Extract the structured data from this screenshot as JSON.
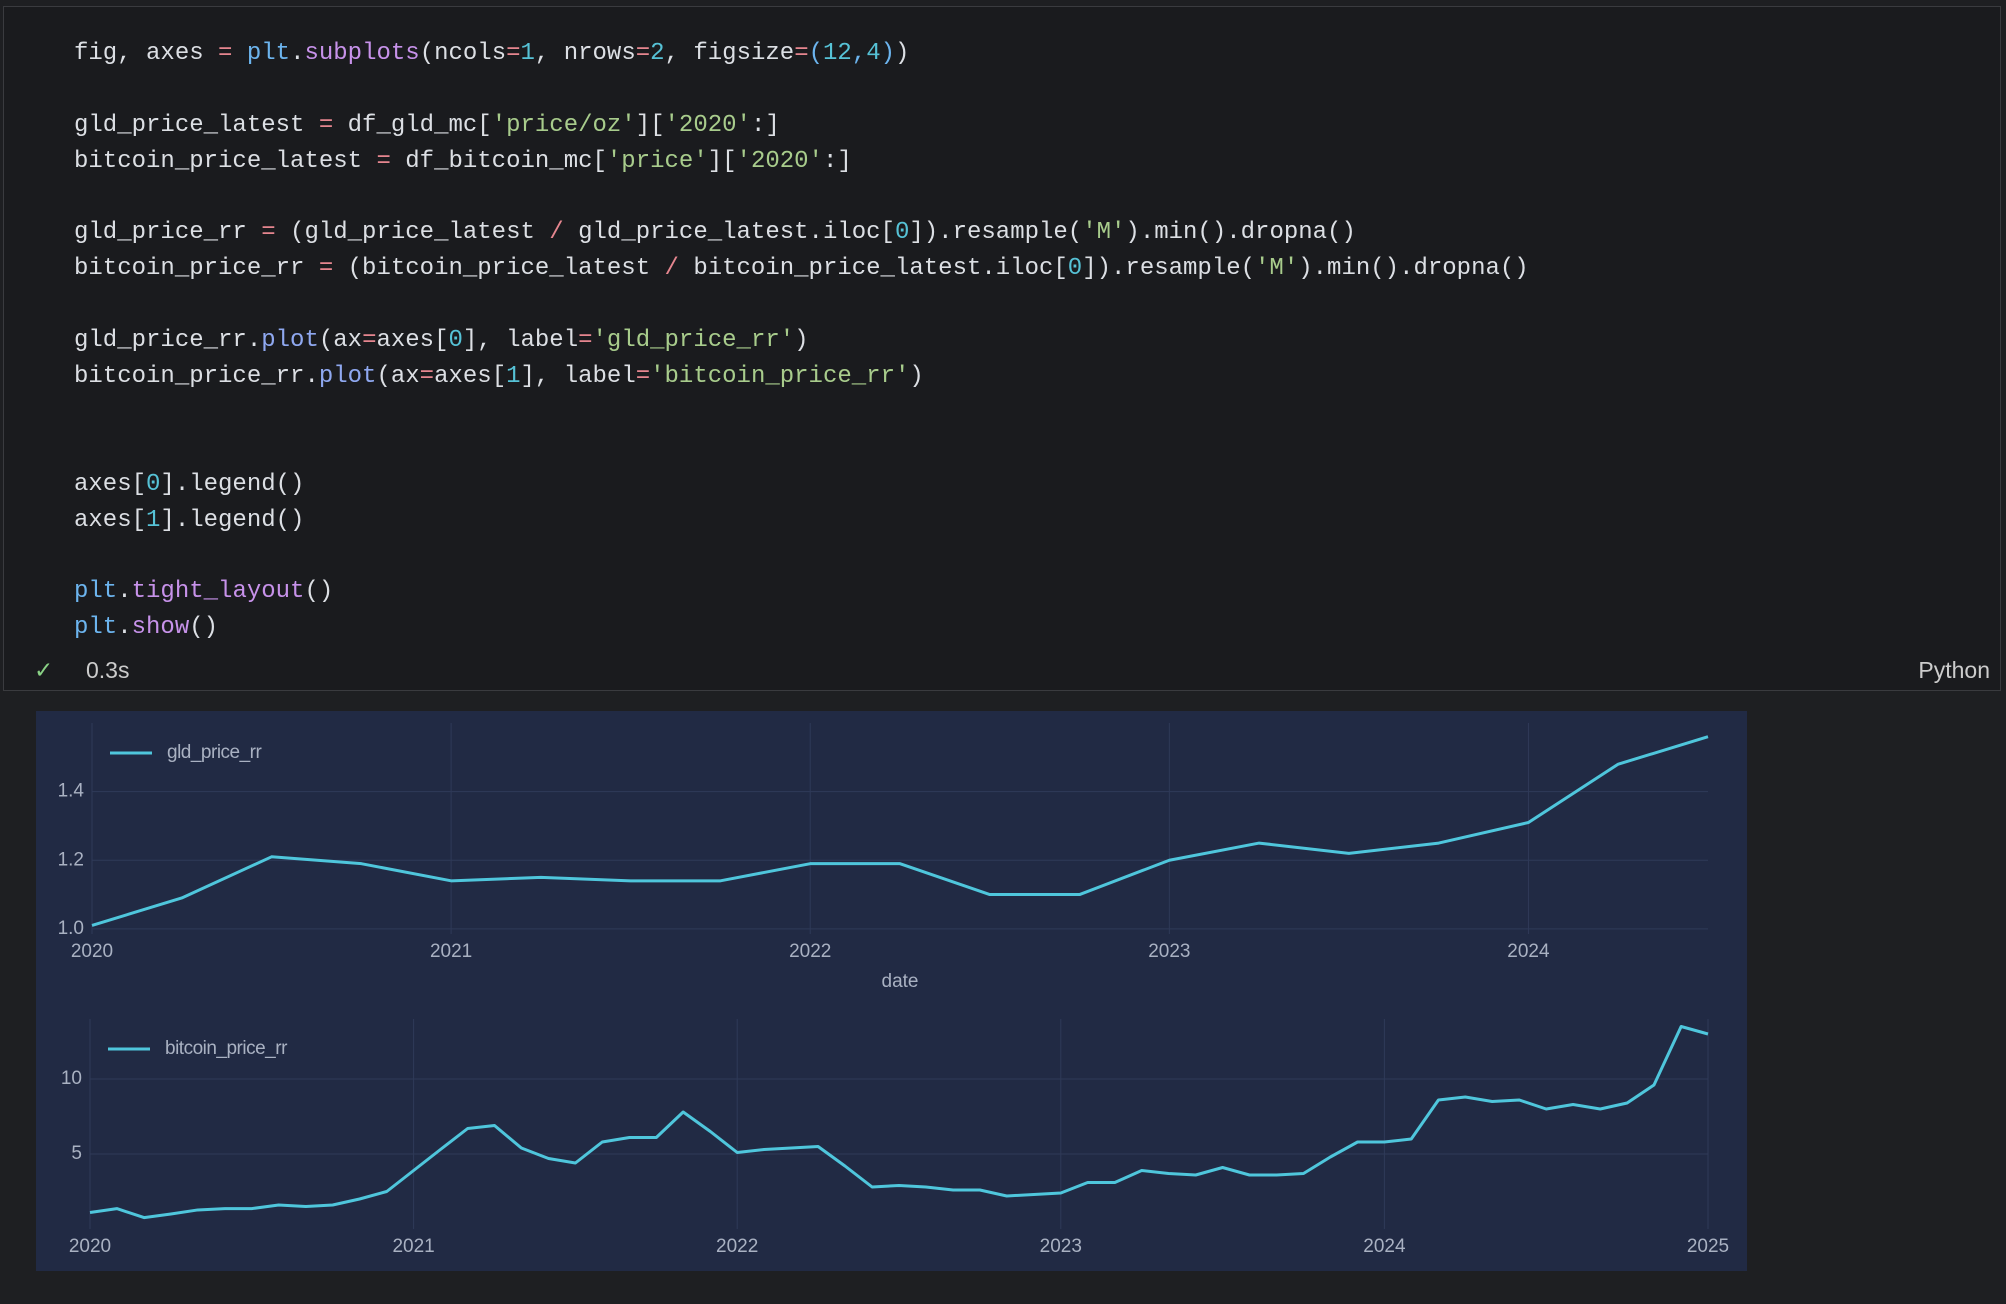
{
  "code": {
    "lines": [
      [
        {
          "text": "fig, axes ",
          "color": "#dcdfe4"
        },
        {
          "text": "=",
          "color": "#e5868f"
        },
        {
          "text": " ",
          "color": "#dcdfe4"
        },
        {
          "text": "plt",
          "color": "#6cb4ee"
        },
        {
          "text": ".",
          "color": "#dcdfe4"
        },
        {
          "text": "subplots",
          "color": "#c792ea"
        },
        {
          "text": "(ncols",
          "color": "#dcdfe4"
        },
        {
          "text": "=",
          "color": "#e5868f"
        },
        {
          "text": "1",
          "color": "#56c2d6"
        },
        {
          "text": ", nrows",
          "color": "#dcdfe4"
        },
        {
          "text": "=",
          "color": "#e5868f"
        },
        {
          "text": "2",
          "color": "#56c2d6"
        },
        {
          "text": ", figsize",
          "color": "#dcdfe4"
        },
        {
          "text": "=",
          "color": "#e5868f"
        },
        {
          "text": "(",
          "color": "#6cb4ee"
        },
        {
          "text": "12",
          "color": "#56c2d6"
        },
        {
          "text": ",",
          "color": "#6cb4ee"
        },
        {
          "text": "4",
          "color": "#56c2d6"
        },
        {
          "text": ")",
          "color": "#6cb4ee"
        },
        {
          "text": ")",
          "color": "#dcdfe4"
        }
      ],
      [],
      [
        {
          "text": "gld_price_latest ",
          "color": "#dcdfe4"
        },
        {
          "text": "=",
          "color": "#e5868f"
        },
        {
          "text": " df_gld_mc[",
          "color": "#dcdfe4"
        },
        {
          "text": "'price/oz'",
          "color": "#a8cc8c"
        },
        {
          "text": "][",
          "color": "#dcdfe4"
        },
        {
          "text": "'2020'",
          "color": "#a8cc8c"
        },
        {
          "text": ":]",
          "color": "#dcdfe4"
        }
      ],
      [
        {
          "text": "bitcoin_price_latest ",
          "color": "#dcdfe4"
        },
        {
          "text": "=",
          "color": "#e5868f"
        },
        {
          "text": " df_bitcoin_mc[",
          "color": "#dcdfe4"
        },
        {
          "text": "'price'",
          "color": "#a8cc8c"
        },
        {
          "text": "][",
          "color": "#dcdfe4"
        },
        {
          "text": "'2020'",
          "color": "#a8cc8c"
        },
        {
          "text": ":]",
          "color": "#dcdfe4"
        }
      ],
      [],
      [
        {
          "text": "gld_price_rr ",
          "color": "#dcdfe4"
        },
        {
          "text": "=",
          "color": "#e5868f"
        },
        {
          "text": " (gld_price_latest ",
          "color": "#dcdfe4"
        },
        {
          "text": "/",
          "color": "#e5868f"
        },
        {
          "text": " gld_price_latest.iloc[",
          "color": "#dcdfe4"
        },
        {
          "text": "0",
          "color": "#56c2d6"
        },
        {
          "text": "]).resample(",
          "color": "#dcdfe4"
        },
        {
          "text": "'M'",
          "color": "#a8cc8c"
        },
        {
          "text": ").min().dropna()",
          "color": "#dcdfe4"
        }
      ],
      [
        {
          "text": "bitcoin_price_rr ",
          "color": "#dcdfe4"
        },
        {
          "text": "=",
          "color": "#e5868f"
        },
        {
          "text": " (bitcoin_price_latest ",
          "color": "#dcdfe4"
        },
        {
          "text": "/",
          "color": "#e5868f"
        },
        {
          "text": " bitcoin_price_latest.iloc[",
          "color": "#dcdfe4"
        },
        {
          "text": "0",
          "color": "#56c2d6"
        },
        {
          "text": "]).resample(",
          "color": "#dcdfe4"
        },
        {
          "text": "'M'",
          "color": "#a8cc8c"
        },
        {
          "text": ").min().dropna()",
          "color": "#dcdfe4"
        }
      ],
      [],
      [
        {
          "text": "gld_price_rr.",
          "color": "#dcdfe4"
        },
        {
          "text": "plot",
          "color": "#8fa8f0"
        },
        {
          "text": "(ax",
          "color": "#dcdfe4"
        },
        {
          "text": "=",
          "color": "#e5868f"
        },
        {
          "text": "axes[",
          "color": "#dcdfe4"
        },
        {
          "text": "0",
          "color": "#56c2d6"
        },
        {
          "text": "], label",
          "color": "#dcdfe4"
        },
        {
          "text": "=",
          "color": "#e5868f"
        },
        {
          "text": "'gld_price_rr'",
          "color": "#a8cc8c"
        },
        {
          "text": ")",
          "color": "#dcdfe4"
        }
      ],
      [
        {
          "text": "bitcoin_price_rr.",
          "color": "#dcdfe4"
        },
        {
          "text": "plot",
          "color": "#8fa8f0"
        },
        {
          "text": "(ax",
          "color": "#dcdfe4"
        },
        {
          "text": "=",
          "color": "#e5868f"
        },
        {
          "text": "axes[",
          "color": "#dcdfe4"
        },
        {
          "text": "1",
          "color": "#56c2d6"
        },
        {
          "text": "], label",
          "color": "#dcdfe4"
        },
        {
          "text": "=",
          "color": "#e5868f"
        },
        {
          "text": "'bitcoin_price_rr'",
          "color": "#a8cc8c"
        },
        {
          "text": ")",
          "color": "#dcdfe4"
        }
      ],
      [],
      [],
      [
        {
          "text": "axes[",
          "color": "#dcdfe4"
        },
        {
          "text": "0",
          "color": "#56c2d6"
        },
        {
          "text": "].legend()",
          "color": "#dcdfe4"
        }
      ],
      [
        {
          "text": "axes[",
          "color": "#dcdfe4"
        },
        {
          "text": "1",
          "color": "#56c2d6"
        },
        {
          "text": "].legend()",
          "color": "#dcdfe4"
        }
      ],
      [],
      [
        {
          "text": "plt",
          "color": "#6cb4ee"
        },
        {
          "text": ".",
          "color": "#dcdfe4"
        },
        {
          "text": "tight_layout",
          "color": "#c792ea"
        },
        {
          "text": "()",
          "color": "#dcdfe4"
        }
      ],
      [
        {
          "text": "plt",
          "color": "#6cb4ee"
        },
        {
          "text": ".",
          "color": "#dcdfe4"
        },
        {
          "text": "show",
          "color": "#c792ea"
        },
        {
          "text": "()",
          "color": "#dcdfe4"
        }
      ]
    ]
  },
  "status": {
    "check": "✓",
    "time": "0.3s",
    "language": "Python"
  },
  "chart_data": [
    {
      "type": "line",
      "xlabel": "date",
      "legend": "upper left",
      "grid": true,
      "x": [
        2020,
        2020.25,
        2020.5,
        2020.75,
        2021,
        2021.25,
        2021.5,
        2021.75,
        2022,
        2022.25,
        2022.5,
        2022.75,
        2023,
        2023.25,
        2023.5,
        2023.75,
        2024,
        2024.25,
        2024.5
      ],
      "series": [
        {
          "name": "gld_price_rr",
          "color": "#4fc6dc",
          "values": [
            1.01,
            1.09,
            1.21,
            1.19,
            1.14,
            1.15,
            1.14,
            1.14,
            1.19,
            1.19,
            1.1,
            1.1,
            1.2,
            1.25,
            1.22,
            1.25,
            1.31,
            1.48,
            1.56
          ]
        }
      ],
      "xlim": [
        2020,
        2024.5
      ],
      "xticks": [
        2020,
        2021,
        2022,
        2023,
        2024
      ],
      "ylim": [
        0.985,
        1.6
      ],
      "yticks": [
        {
          "value": 1,
          "label": "1.0"
        },
        1.2,
        1.4
      ]
    },
    {
      "type": "line",
      "legend": "upper left",
      "grid": true,
      "x": [
        2020,
        2020.083,
        2020.167,
        2020.25,
        2020.333,
        2020.417,
        2020.5,
        2020.583,
        2020.667,
        2020.75,
        2020.833,
        2020.917,
        2021,
        2021.083,
        2021.167,
        2021.25,
        2021.333,
        2021.417,
        2021.5,
        2021.583,
        2021.667,
        2021.75,
        2021.833,
        2021.917,
        2022,
        2022.083,
        2022.167,
        2022.25,
        2022.333,
        2022.417,
        2022.5,
        2022.583,
        2022.667,
        2022.75,
        2022.833,
        2022.917,
        2023,
        2023.083,
        2023.167,
        2023.25,
        2023.333,
        2023.417,
        2023.5,
        2023.583,
        2023.667,
        2023.75,
        2023.833,
        2023.917,
        2024,
        2024.083,
        2024.167,
        2024.25,
        2024.333,
        2024.417,
        2024.5,
        2024.583,
        2024.667,
        2024.75,
        2024.833,
        2024.917,
        2025
      ],
      "series": [
        {
          "name": "bitcoin_price_rr",
          "color": "#4fc6dc",
          "values": [
            1.1,
            1.36,
            0.76,
            1.0,
            1.27,
            1.36,
            1.36,
            1.6,
            1.5,
            1.6,
            2.0,
            2.5,
            3.9,
            5.3,
            6.7,
            6.9,
            5.4,
            4.7,
            4.4,
            5.8,
            6.1,
            6.1,
            7.8,
            6.5,
            5.1,
            5.3,
            5.4,
            5.5,
            4.2,
            2.8,
            2.9,
            2.8,
            2.6,
            2.6,
            2.2,
            2.3,
            2.4,
            3.1,
            3.1,
            3.9,
            3.7,
            3.6,
            4.1,
            3.6,
            3.6,
            3.7,
            4.8,
            5.8,
            5.8,
            6.0,
            8.6,
            8.8,
            8.5,
            8.6,
            8.0,
            8.3,
            8.0,
            8.4,
            9.6,
            13.5,
            13.0
          ]
        }
      ],
      "xlim": [
        2020,
        2025
      ],
      "xticks": [
        2020,
        2021,
        2022,
        2023,
        2024,
        2025
      ],
      "ylim": [
        0,
        14
      ],
      "yticks": [
        5,
        10
      ]
    }
  ]
}
